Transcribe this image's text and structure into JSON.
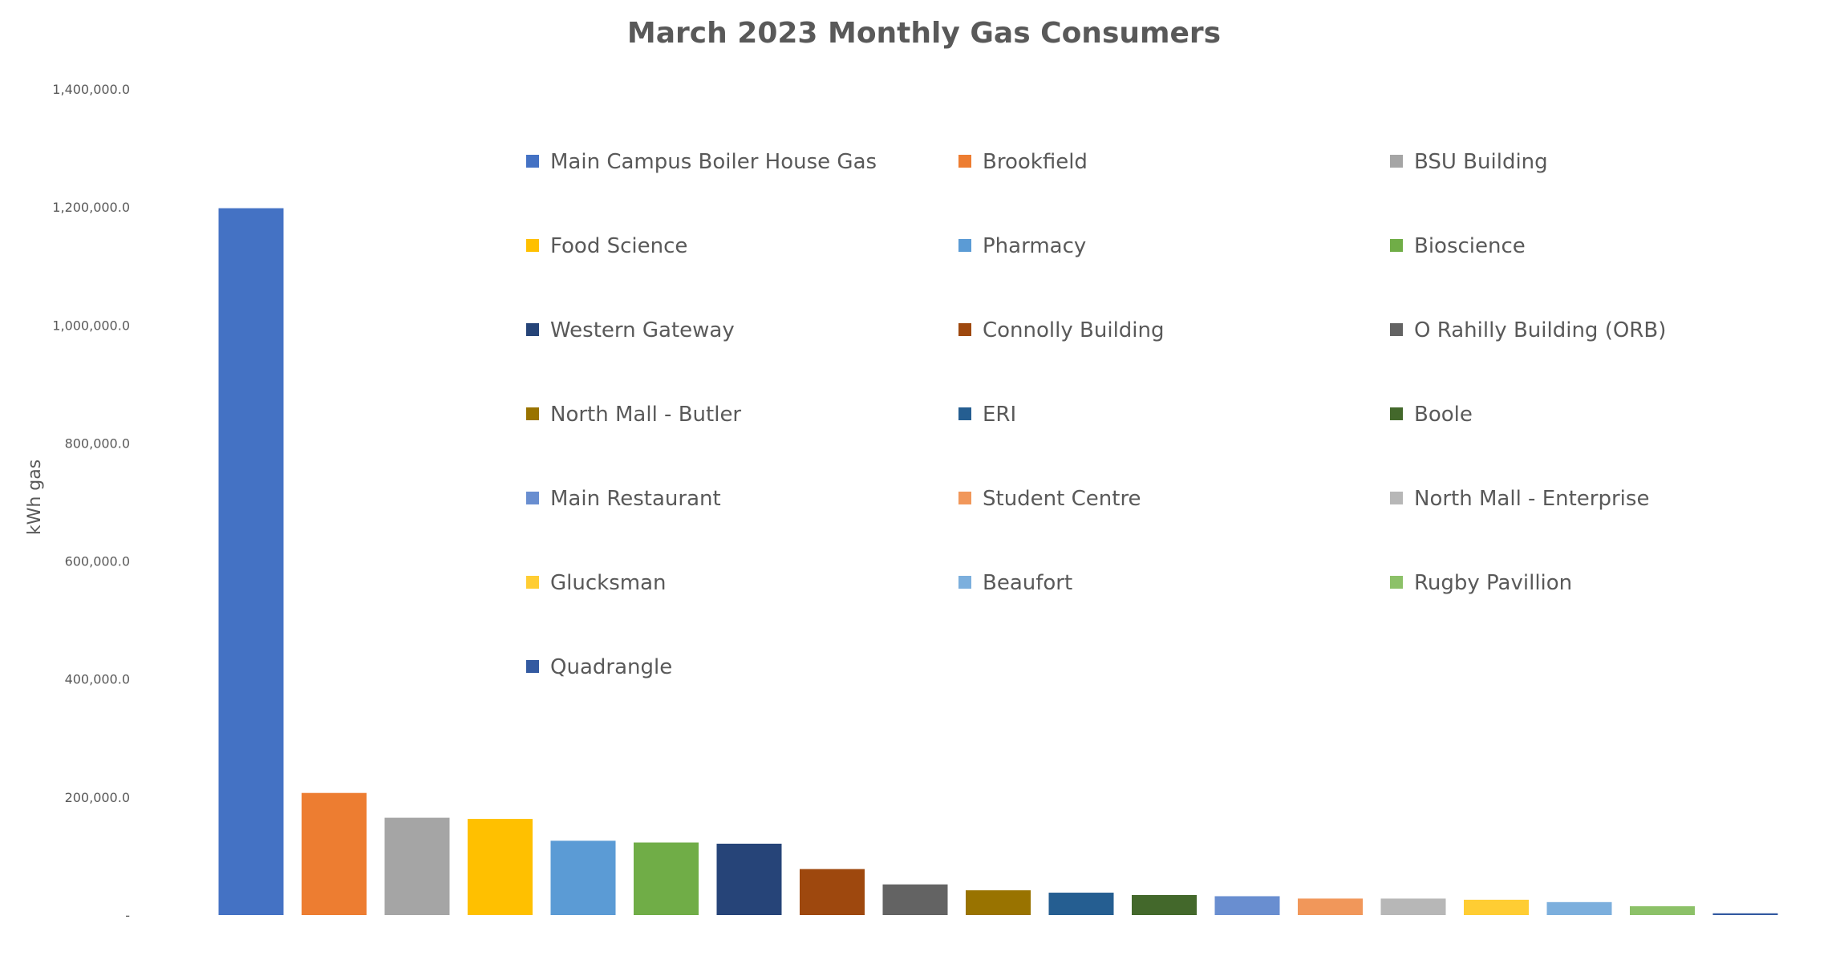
{
  "chart_data": {
    "type": "bar",
    "title": "March 2023 Monthly Gas Consumers",
    "xlabel": "",
    "ylabel": "kWh gas",
    "ylim": [
      0,
      1400000
    ],
    "yticks": [
      0,
      200000,
      400000,
      600000,
      800000,
      1000000,
      1200000,
      1400000
    ],
    "ytick_labels": [
      "-",
      "200,000.0",
      "400,000.0",
      "600,000.0",
      "800,000.0",
      "1,000,000.0",
      "1,200,000.0",
      "1,400,000.0"
    ],
    "grid": false,
    "legend_position": "inside-top",
    "categories": [
      "Main Campus Boiler House Gas",
      "Brookfield",
      "BSU Building",
      "Food Science",
      "Pharmacy",
      "Bioscience",
      "Western Gateway",
      "Connolly Building",
      "O Rahilly Building (ORB)",
      "North Mall - Butler",
      "ERI",
      "Boole",
      "Main Restaurant",
      "Student Centre",
      "North Mall - Enterprise",
      "Glucksman",
      "Beaufort",
      "Rugby Pavillion",
      "Quadrangle"
    ],
    "values": [
      1198000,
      207000,
      165000,
      163000,
      126000,
      123000,
      121000,
      78000,
      52000,
      42000,
      38000,
      34000,
      32000,
      28000,
      28000,
      26000,
      22000,
      15000,
      3000
    ],
    "colors": [
      "#4472C4",
      "#ED7D31",
      "#A5A5A5",
      "#FFC000",
      "#5B9BD5",
      "#70AD47",
      "#264478",
      "#9E480E",
      "#636363",
      "#997300",
      "#255E91",
      "#43682B",
      "#698ED0",
      "#F1975A",
      "#B7B7B7",
      "#FFCD33",
      "#7CAFDD",
      "#8CC168",
      "#335AA1"
    ]
  }
}
